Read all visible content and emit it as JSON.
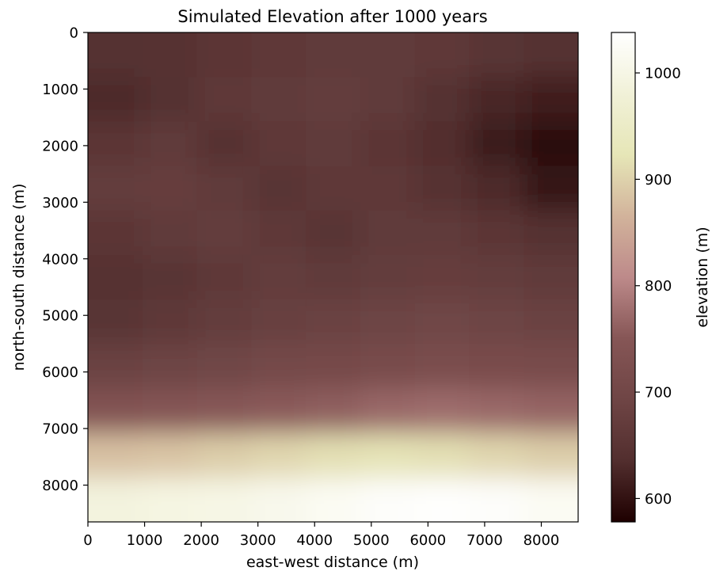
{
  "chart_data": {
    "type": "heatmap",
    "title": "Simulated Elevation after 1000 years",
    "xlabel": "east-west distance (m)",
    "ylabel": "north-south distance (m)",
    "xlim": [
      0,
      8650
    ],
    "ylim": [
      8650,
      0
    ],
    "xticks": [
      "0",
      "1000",
      "2000",
      "3000",
      "4000",
      "5000",
      "6000",
      "7000",
      "8000"
    ],
    "yticks": [
      "0",
      "1000",
      "2000",
      "3000",
      "4000",
      "5000",
      "6000",
      "7000",
      "8000"
    ],
    "colormap": "pink",
    "colorbar": {
      "label": "elevation (m)",
      "range": [
        578,
        1038
      ],
      "ticks": [
        "600",
        "700",
        "800",
        "900",
        "1000"
      ]
    },
    "grid": false,
    "elevation_rows": [
      [
        640,
        645,
        655,
        660,
        665,
        665,
        660,
        650,
        640
      ],
      [
        630,
        640,
        660,
        665,
        670,
        665,
        640,
        625,
        615
      ],
      [
        655,
        665,
        645,
        660,
        665,
        655,
        635,
        610,
        590
      ],
      [
        670,
        675,
        665,
        650,
        660,
        660,
        645,
        630,
        605
      ],
      [
        655,
        665,
        670,
        660,
        650,
        665,
        665,
        655,
        640
      ],
      [
        645,
        650,
        660,
        670,
        665,
        670,
        675,
        670,
        665
      ],
      [
        650,
        660,
        670,
        680,
        685,
        690,
        695,
        690,
        685
      ],
      [
        685,
        690,
        695,
        705,
        710,
        715,
        720,
        718,
        715
      ],
      [
        740,
        745,
        750,
        755,
        760,
        770,
        775,
        770,
        765
      ],
      [
        880,
        885,
        895,
        905,
        915,
        920,
        915,
        905,
        895
      ],
      [
        990,
        995,
        1000,
        1010,
        1020,
        1030,
        1035,
        1030,
        1020
      ]
    ]
  }
}
